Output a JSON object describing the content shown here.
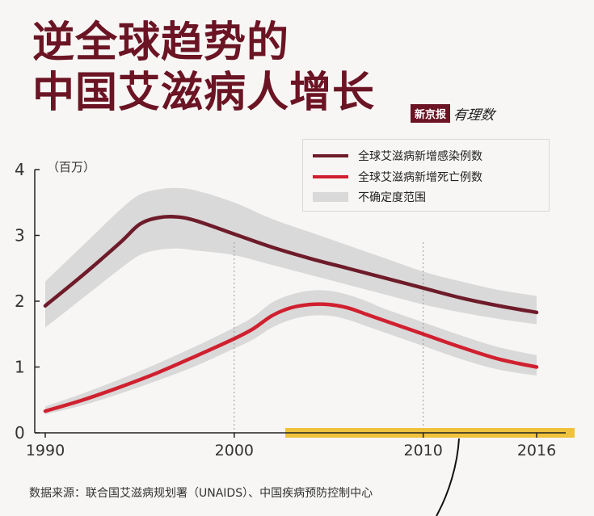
{
  "title_lines": [
    "逆全球趋势的",
    "中国艾滋病人增长"
  ],
  "brand": {
    "box_text": "新京报",
    "script_text": "有理数"
  },
  "source": "数据来源：联合国艾滋病规划署（UNAIDS）、中国疾病预防控制中心",
  "colors": {
    "title": "#6b1424",
    "infections": "#6e1b2a",
    "deaths": "#d0202f",
    "band": "#d9d9d9",
    "highlight": "#f0c23c",
    "axis": "#222222"
  },
  "chart_data": {
    "type": "line",
    "unit_label": "（百万）",
    "xlim": [
      1990,
      2016
    ],
    "ylim": [
      0,
      4
    ],
    "x_ticks": [
      1990,
      2000,
      2010,
      2016
    ],
    "y_ticks": [
      0,
      1,
      2,
      3,
      4
    ],
    "reference_lines_x": [
      2000,
      2010
    ],
    "legend_position": "top-right",
    "legend": [
      "全球艾滋病新增感染例数",
      "全球艾滋病新增死亡例数",
      "不确定度范围"
    ],
    "series": [
      {
        "name": "全球艾滋病新增感染例数",
        "x": [
          1990,
          1992,
          1994,
          1995,
          1996,
          1997,
          1998,
          2000,
          2002,
          2004,
          2006,
          2008,
          2010,
          2012,
          2014,
          2016
        ],
        "y": [
          1.93,
          2.4,
          2.9,
          3.17,
          3.27,
          3.28,
          3.22,
          3.02,
          2.82,
          2.65,
          2.5,
          2.35,
          2.2,
          2.05,
          1.93,
          1.83
        ],
        "lower": [
          1.6,
          2.05,
          2.5,
          2.7,
          2.78,
          2.8,
          2.77,
          2.7,
          2.55,
          2.4,
          2.25,
          2.1,
          1.95,
          1.83,
          1.73,
          1.65
        ],
        "upper": [
          2.3,
          2.85,
          3.4,
          3.62,
          3.7,
          3.72,
          3.68,
          3.5,
          3.25,
          3.05,
          2.85,
          2.65,
          2.45,
          2.3,
          2.17,
          2.08
        ]
      },
      {
        "name": "全球艾滋病新增死亡例数",
        "x": [
          1990,
          1992,
          1994,
          1996,
          1998,
          2000,
          2001,
          2002,
          2003,
          2004,
          2005,
          2006,
          2007,
          2008,
          2010,
          2012,
          2014,
          2016
        ],
        "y": [
          0.33,
          0.5,
          0.7,
          0.92,
          1.17,
          1.43,
          1.58,
          1.78,
          1.9,
          1.95,
          1.95,
          1.9,
          1.8,
          1.7,
          1.5,
          1.3,
          1.12,
          1.0
        ],
        "lower": [
          0.28,
          0.42,
          0.6,
          0.8,
          1.02,
          1.28,
          1.42,
          1.6,
          1.72,
          1.78,
          1.78,
          1.72,
          1.62,
          1.52,
          1.32,
          1.12,
          0.96,
          0.87
        ],
        "upper": [
          0.4,
          0.6,
          0.82,
          1.06,
          1.32,
          1.6,
          1.76,
          1.98,
          2.1,
          2.16,
          2.16,
          2.1,
          2.0,
          1.88,
          1.68,
          1.48,
          1.3,
          1.18
        ]
      }
    ]
  }
}
